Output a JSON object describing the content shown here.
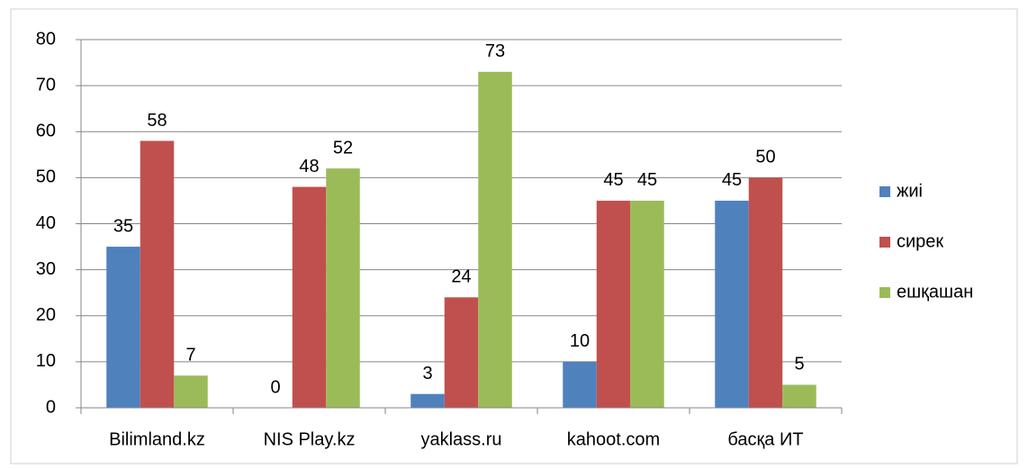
{
  "chart_data": {
    "type": "bar",
    "categories": [
      "Bilimland.kz",
      "NIS Play.kz",
      "yaklass.ru",
      "kahoot.com",
      "басқа ИТ"
    ],
    "series": [
      {
        "name": "жиі",
        "color": "#4f81bd",
        "values": [
          35,
          0,
          3,
          10,
          45
        ]
      },
      {
        "name": "сирек",
        "color": "#c0504d",
        "values": [
          58,
          48,
          24,
          45,
          50
        ]
      },
      {
        "name": "ешқашан",
        "color": "#9bbb59",
        "values": [
          7,
          52,
          73,
          45,
          5
        ]
      }
    ],
    "ylim": [
      0,
      80
    ],
    "yticks": [
      0,
      10,
      20,
      30,
      40,
      50,
      60,
      70,
      80
    ],
    "grid": true,
    "legend": "right"
  }
}
